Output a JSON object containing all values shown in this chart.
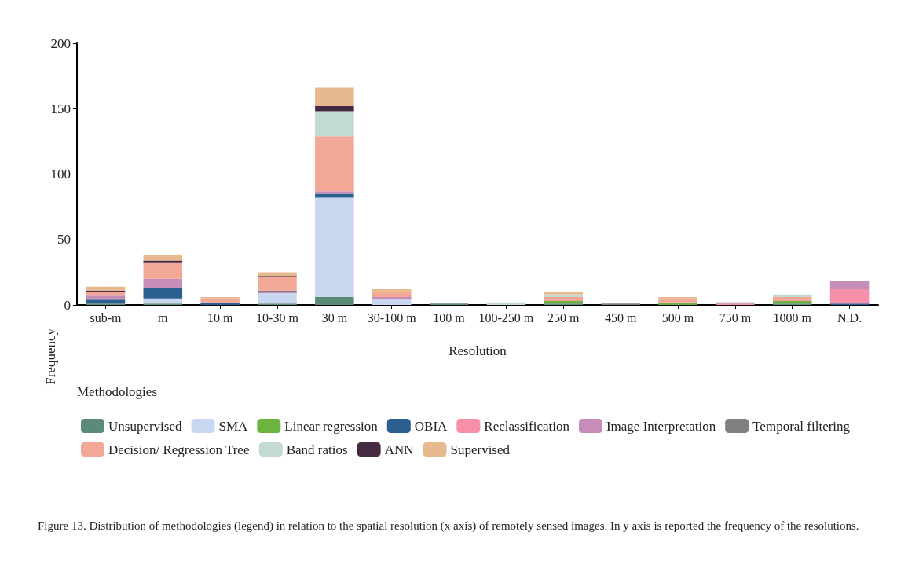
{
  "chart_data": {
    "type": "bar",
    "stacked": true,
    "xlabel": "Resolution",
    "ylabel": "Frequency",
    "legend_title": "Methodologies",
    "legend": "bottom",
    "grid": false,
    "categories": [
      "sub-m",
      "m",
      "10 m",
      "10-30 m",
      "30 m",
      "30-100 m",
      "100 m",
      "100-250 m",
      "250 m",
      "450 m",
      "500 m",
      "750 m",
      "1000 m",
      "N.D."
    ],
    "ylim": [
      0,
      200
    ],
    "yticks": [
      0,
      50,
      100,
      150,
      200
    ],
    "series": [
      {
        "name": "Unsupervised",
        "color": "#5b8a78",
        "values": [
          1,
          1,
          null,
          1,
          6,
          null,
          1,
          null,
          1,
          null,
          null,
          null,
          1,
          null
        ]
      },
      {
        "name": "SMA",
        "color": "#c9d6ef",
        "values": [
          null,
          4,
          null,
          8,
          76,
          4,
          null,
          null,
          null,
          null,
          null,
          null,
          null,
          null
        ]
      },
      {
        "name": "Linear regression",
        "color": "#6db33f",
        "values": [
          null,
          null,
          null,
          null,
          null,
          null,
          null,
          null,
          2,
          null,
          2,
          null,
          2,
          null
        ]
      },
      {
        "name": "OBIA",
        "color": "#2a5f8f",
        "values": [
          3,
          8,
          2,
          null,
          3,
          null,
          null,
          null,
          null,
          null,
          null,
          null,
          null,
          1
        ]
      },
      {
        "name": "Reclassification",
        "color": "#f590a8",
        "values": [
          null,
          null,
          null,
          null,
          null,
          null,
          null,
          null,
          null,
          null,
          null,
          1,
          null,
          11
        ]
      },
      {
        "name": "Image Interpretation",
        "color": "#c58db8",
        "values": [
          3,
          7,
          null,
          1,
          2,
          2,
          null,
          null,
          null,
          null,
          null,
          null,
          null,
          6
        ]
      },
      {
        "name": "Temporal filtering",
        "color": "#808080",
        "values": [
          null,
          null,
          null,
          1,
          null,
          null,
          null,
          null,
          null,
          1,
          null,
          1,
          null,
          null
        ]
      },
      {
        "name": "Decision/ Regression Tree",
        "color": "#f2a797",
        "values": [
          3,
          12,
          3,
          10,
          42,
          3,
          null,
          null,
          3,
          null,
          3,
          null,
          3,
          null
        ]
      },
      {
        "name": "Band ratios",
        "color": "#c3dad3",
        "values": [
          null,
          null,
          null,
          null,
          19,
          null,
          null,
          2,
          2,
          null,
          null,
          null,
          2,
          null
        ]
      },
      {
        "name": "ANN",
        "color": "#452a42",
        "values": [
          1,
          2,
          null,
          1,
          4,
          null,
          null,
          null,
          null,
          null,
          null,
          null,
          null,
          null
        ]
      },
      {
        "name": "Supervised",
        "color": "#e8b98f",
        "values": [
          3,
          4,
          1,
          3,
          14,
          3,
          null,
          null,
          2,
          null,
          1,
          null,
          null,
          null
        ]
      }
    ],
    "annotations": [
      "Figure 13. Distribution of methodologies (legend) in relation to the spatial resolution (x axis) of remotely sensed images. In y axis is reported the frequency of the resolutions."
    ]
  }
}
